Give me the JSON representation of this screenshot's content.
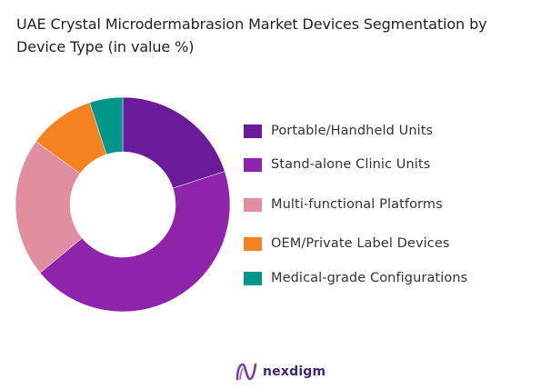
{
  "header": {
    "title": "UAE Crystal Microdermabrasion Market Devices Segmentation by Device Type (in value %)"
  },
  "chart_data": {
    "type": "pie",
    "variant": "donut",
    "title": "UAE Crystal Microdermabrasion Market Devices Segmentation by Device Type (in value %)",
    "legend_position": "right",
    "categories": [
      "Portable/Handheld Units",
      "Stand-alone Clinic Units",
      "Multi-functional Platforms",
      "OEM/Private Label Devices",
      "Medical-grade Configurations"
    ],
    "values": [
      20,
      44,
      21,
      10,
      5
    ],
    "colors": [
      "#6a1b9a",
      "#8e24aa",
      "#e18fa0",
      "#f58220",
      "#00968a"
    ]
  },
  "brand": {
    "name": "nexdigm",
    "logo_icon": "nexdigm-logo-icon",
    "color": "#3d2a6e"
  }
}
